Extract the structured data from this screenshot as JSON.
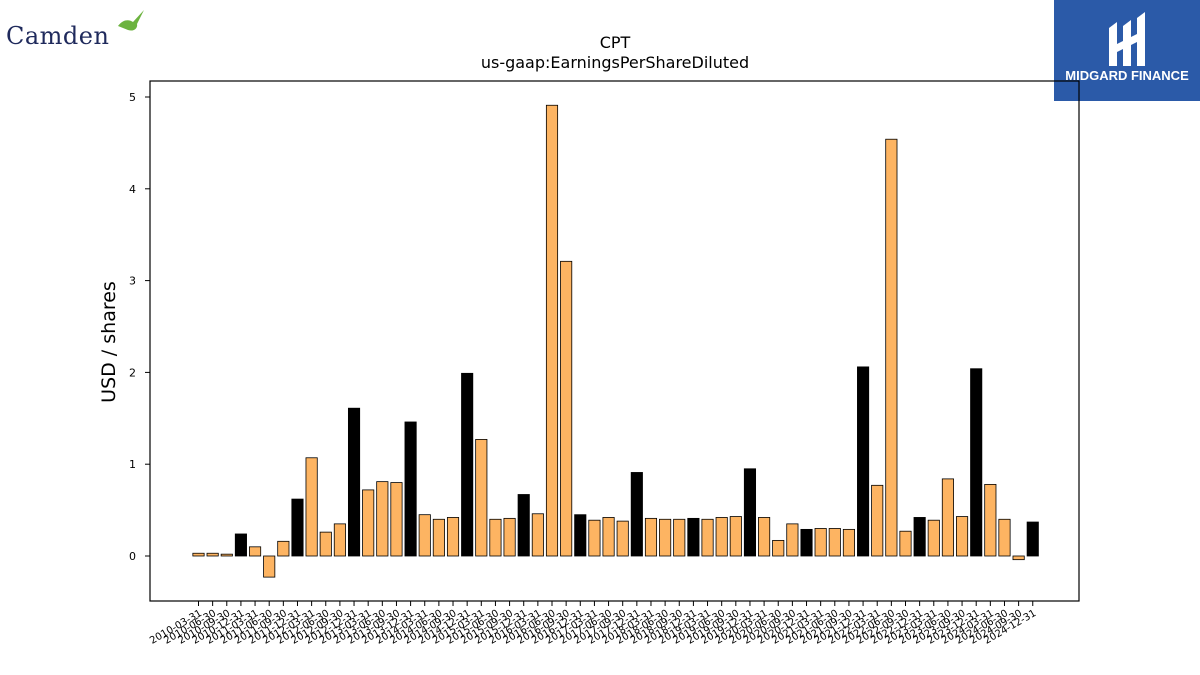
{
  "branding": {
    "left_logo_text": "Camden",
    "right_logo_text": "MIDGARD FINANCE",
    "right_logo_bg": "#2b5aa8",
    "left_logo_color": "#1f2a5c",
    "bird_color": "#6cb33f"
  },
  "chart_data": {
    "type": "bar",
    "title": "CPT",
    "subtitle": "us-gaap:EarningsPerShareDiluted",
    "xlabel": "",
    "ylabel": "USD / shares",
    "ylim": [
      -0.5,
      5.18
    ],
    "yticks": [
      0,
      1,
      2,
      3,
      4,
      5
    ],
    "grid": false,
    "colors": {
      "quarter": "#fdb462",
      "annual": "#000000",
      "edge": "#000000"
    },
    "categories": [
      "2010-03-31",
      "2010-06-30",
      "2010-09-30",
      "2010-12-31",
      "2011-03-31",
      "2011-06-30",
      "2011-09-30",
      "2011-12-31",
      "2012-03-31",
      "2012-06-30",
      "2012-09-30",
      "2012-12-31",
      "2013-03-31",
      "2013-06-30",
      "2013-09-30",
      "2013-12-31",
      "2014-03-31",
      "2014-06-30",
      "2014-09-30",
      "2014-12-31",
      "2015-03-31",
      "2015-06-30",
      "2015-09-30",
      "2015-12-31",
      "2016-03-31",
      "2016-06-30",
      "2016-09-30",
      "2016-12-31",
      "2017-03-31",
      "2017-06-30",
      "2017-09-30",
      "2017-12-31",
      "2018-03-31",
      "2018-06-30",
      "2018-09-30",
      "2018-12-31",
      "2019-03-31",
      "2019-06-30",
      "2019-09-30",
      "2019-12-31",
      "2020-03-31",
      "2020-06-30",
      "2020-09-30",
      "2020-12-31",
      "2021-03-31",
      "2021-06-30",
      "2021-09-30",
      "2021-12-31",
      "2022-03-31",
      "2022-06-30",
      "2022-09-30",
      "2022-12-31",
      "2023-03-31",
      "2023-06-30",
      "2023-09-30",
      "2023-12-31",
      "2024-03-31",
      "2024-06-30",
      "2024-09-30",
      "2024-12-31"
    ],
    "values": [
      0.03,
      0.03,
      0.02,
      0.24,
      0.1,
      -0.23,
      0.16,
      0.62,
      1.07,
      0.26,
      0.35,
      1.61,
      0.72,
      0.81,
      0.8,
      1.46,
      0.45,
      0.4,
      0.42,
      1.99,
      1.27,
      0.4,
      0.41,
      0.67,
      0.46,
      4.91,
      3.21,
      0.45,
      0.39,
      0.42,
      0.38,
      0.91,
      0.41,
      0.4,
      0.4,
      0.41,
      0.4,
      0.42,
      0.43,
      0.95,
      0.42,
      0.17,
      0.35,
      0.29,
      0.3,
      0.3,
      0.29,
      2.06,
      0.77,
      4.54,
      0.27,
      0.42,
      0.39,
      0.84,
      0.43,
      2.04,
      0.78,
      0.4,
      -0.04,
      0.37
    ],
    "annual": [
      false,
      false,
      false,
      true,
      false,
      false,
      false,
      true,
      false,
      false,
      false,
      true,
      false,
      false,
      false,
      true,
      false,
      false,
      false,
      true,
      false,
      false,
      false,
      true,
      false,
      false,
      false,
      true,
      false,
      false,
      false,
      true,
      false,
      false,
      false,
      true,
      false,
      false,
      false,
      true,
      false,
      false,
      false,
      true,
      false,
      false,
      false,
      true,
      false,
      false,
      false,
      true,
      false,
      false,
      false,
      true,
      false,
      false,
      false,
      true
    ]
  }
}
